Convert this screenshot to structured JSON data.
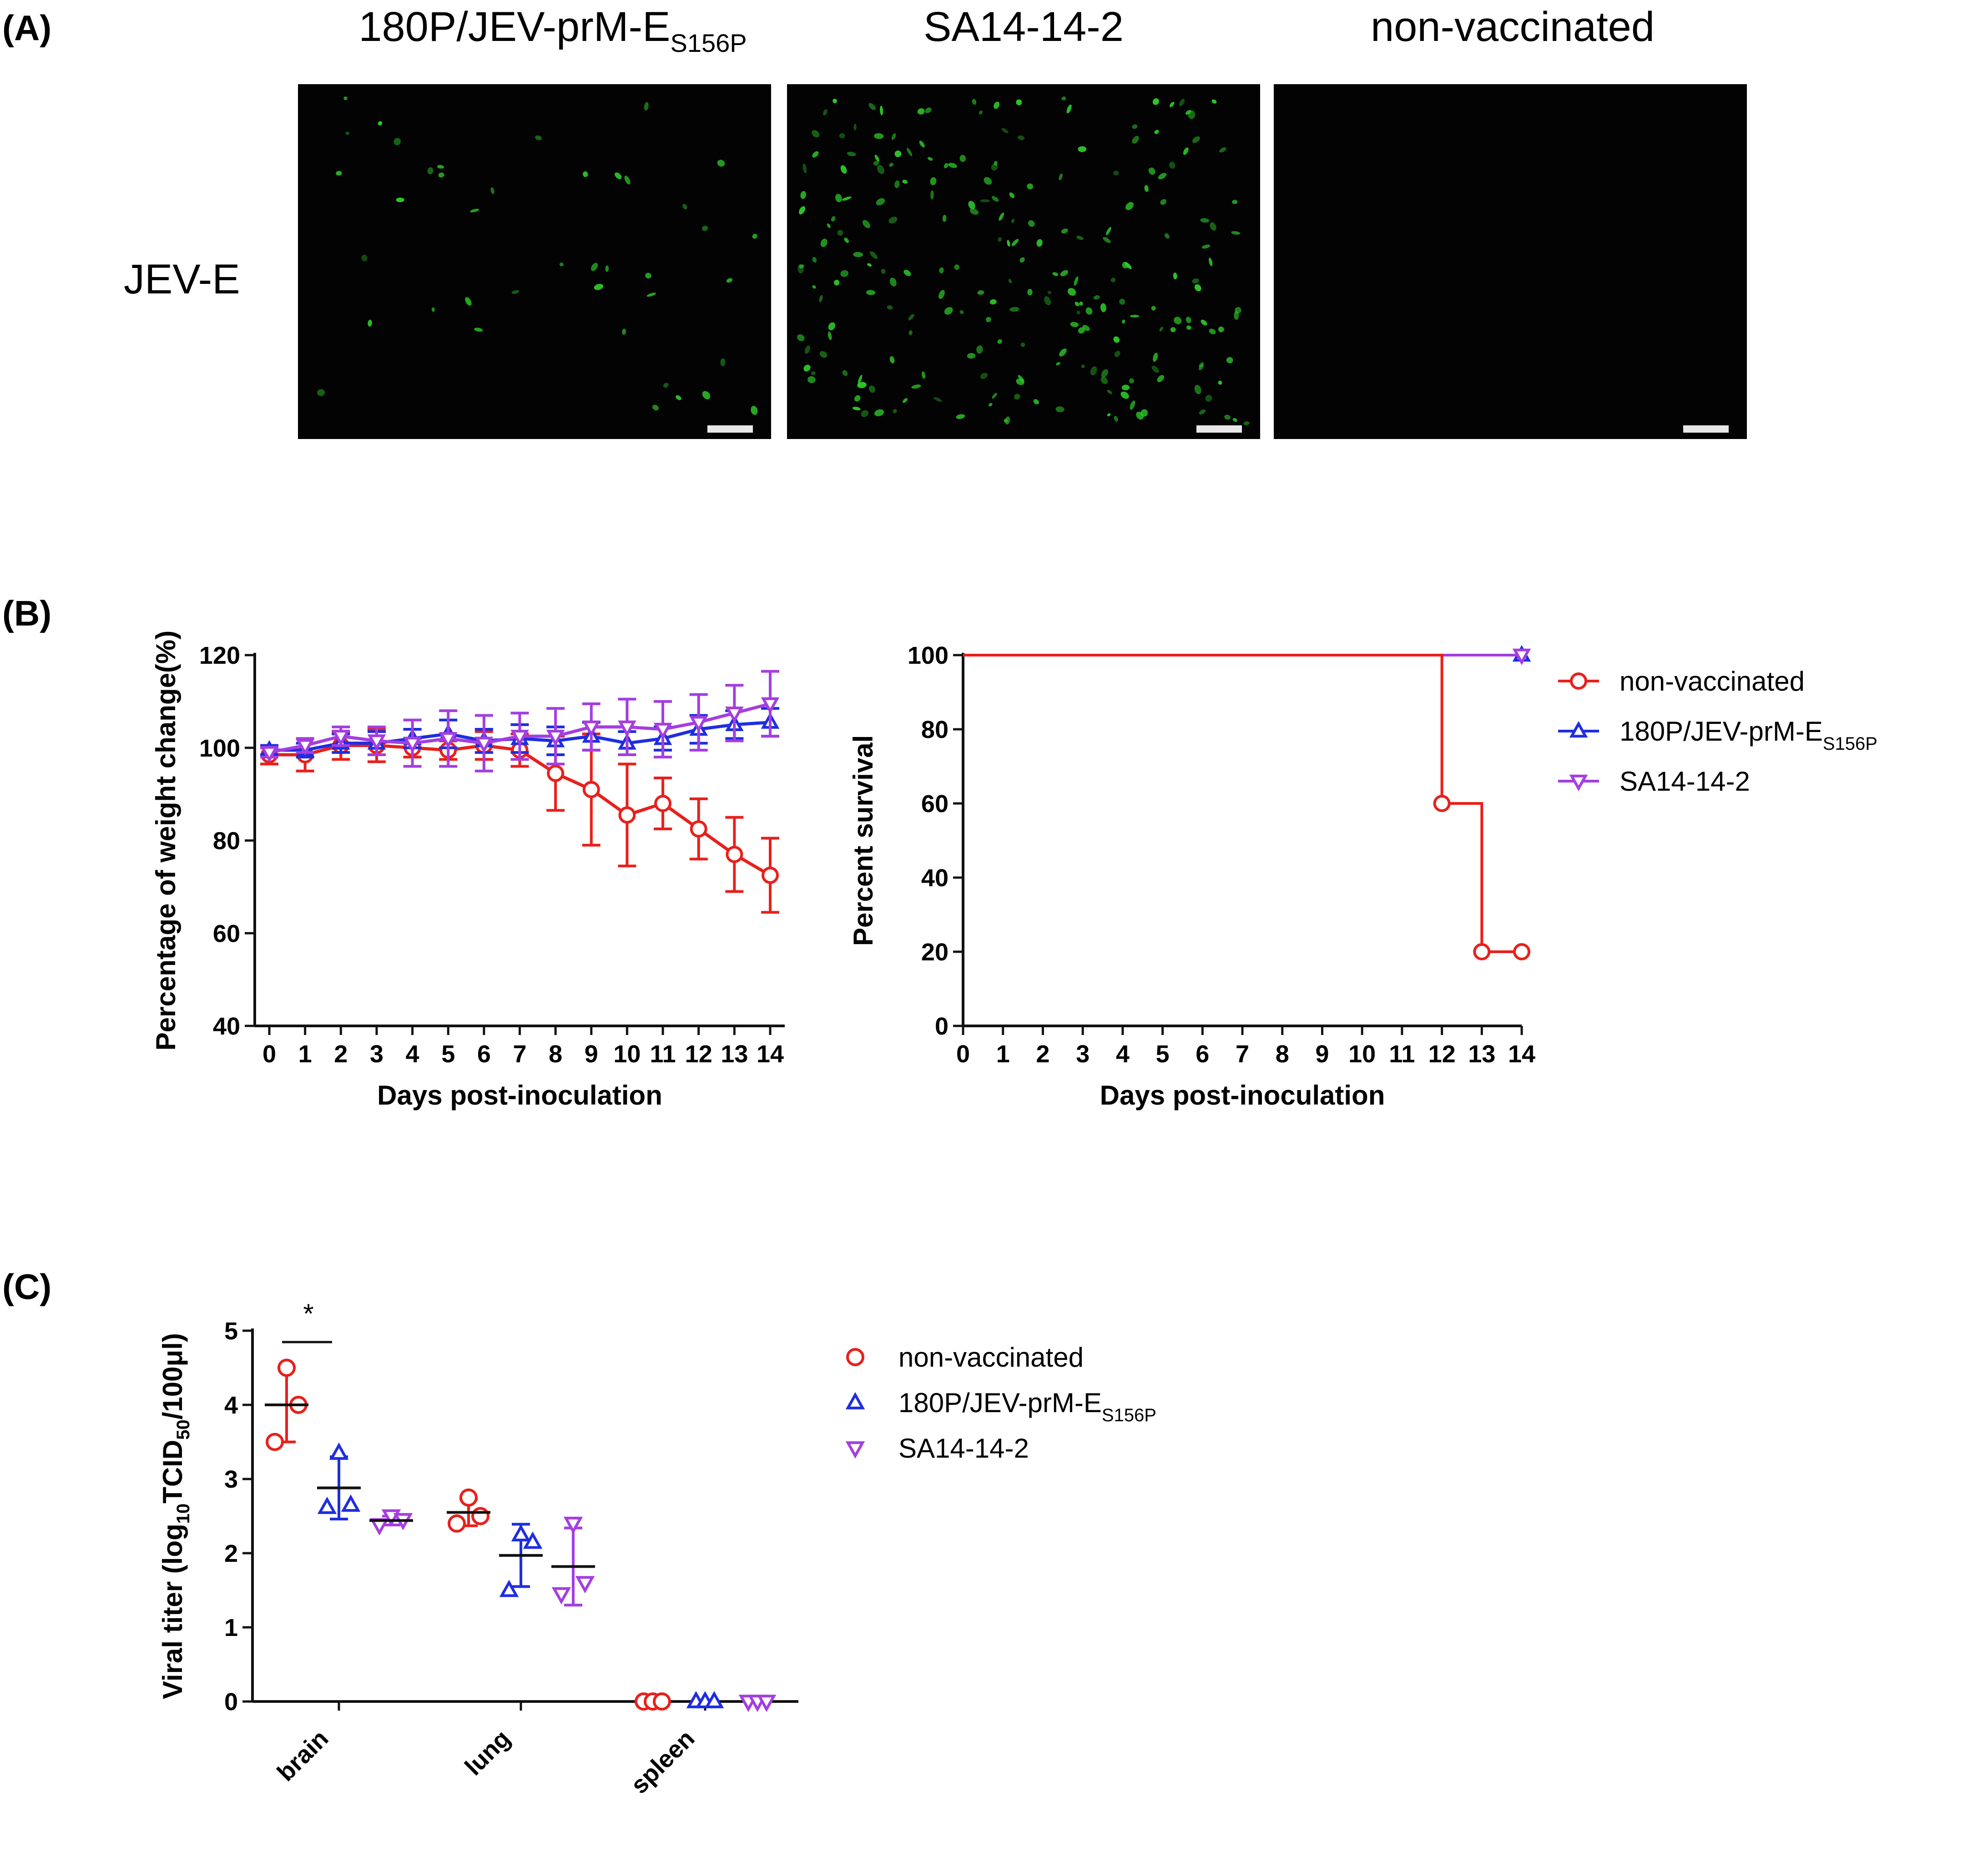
{
  "panel_a": {
    "letter": "(A)",
    "row_label": "JEV-E",
    "columns": [
      {
        "title_main": "180P/JEV-prM-E",
        "title_sub": "S156P"
      },
      {
        "title_main": "SA14-14-2",
        "title_sub": ""
      },
      {
        "title_main": "non-vaccinated",
        "title_sub": ""
      }
    ],
    "fluorescence_color": "#2fd02a",
    "cell_density": [
      0.18,
      1.0,
      0.0
    ]
  },
  "panel_b": {
    "letter": "(B)"
  },
  "panel_c": {
    "letter": "(C)"
  },
  "colors": {
    "non_vaccinated": "#e8201c",
    "vaccine_180P": "#1f2ee0",
    "sa14": "#a43ee0",
    "axis": "#111111"
  },
  "chart_data": [
    {
      "type": "line",
      "ylabel": "Percentage of weight change(%)",
      "xlabel": "Days post-inoculation",
      "ylim": [
        40,
        120
      ],
      "yticks": [
        40,
        60,
        80,
        100,
        120
      ],
      "x": [
        0,
        1,
        2,
        3,
        4,
        5,
        6,
        7,
        8,
        9,
        10,
        11,
        12,
        13,
        14
      ],
      "series": [
        {
          "name": "non-vaccinated",
          "marker": "circle",
          "values": [
            98.5,
            98.5,
            100.5,
            100.5,
            100,
            99.5,
            100.5,
            99.5,
            94.5,
            91,
            85.5,
            88,
            82.5,
            77,
            72.5
          ],
          "errors": [
            2,
            3.5,
            3,
            3.5,
            2,
            2,
            3,
            3.5,
            8,
            12,
            11,
            5.5,
            6.5,
            8,
            8
          ]
        },
        {
          "name": "180P/JEV-prM-E",
          "name_sub": "S156P",
          "marker": "triangle-up",
          "values": [
            99.5,
            99.5,
            101,
            101,
            102,
            103,
            101.5,
            102,
            101.5,
            102.5,
            101,
            102,
            104,
            105,
            105.5
          ],
          "errors": [
            1,
            1.5,
            2,
            2.5,
            2,
            3,
            2.5,
            3,
            3,
            3,
            2.5,
            2.5,
            3,
            3,
            3
          ]
        },
        {
          "name": "SA14-14-2",
          "marker": "triangle-down",
          "values": [
            99,
            100.5,
            102.5,
            101.5,
            101,
            102,
            101,
            102.5,
            102.5,
            104.5,
            104.5,
            104,
            105.5,
            107.5,
            109.5
          ],
          "errors": [
            1,
            1.5,
            2,
            3,
            5,
            6,
            6,
            5,
            6,
            5,
            6,
            6,
            6,
            6,
            7
          ]
        }
      ]
    },
    {
      "type": "line",
      "step": true,
      "ylabel": "Percent survival",
      "xlabel": "Days post-inoculation",
      "ylim": [
        0,
        100
      ],
      "yticks": [
        0,
        20,
        40,
        60,
        80,
        100
      ],
      "xticks": [
        0,
        1,
        2,
        3,
        4,
        5,
        6,
        7,
        8,
        9,
        10,
        11,
        12,
        13,
        14
      ],
      "series": [
        {
          "name": "non-vaccinated",
          "marker": "circle",
          "x": [
            0,
            12,
            13,
            14
          ],
          "values": [
            100,
            60,
            20,
            20
          ],
          "markers_at": [
            12,
            13,
            14
          ]
        },
        {
          "name": "180P/JEV-prM-E",
          "name_sub": "S156P",
          "marker": "triangle-up",
          "x": [
            0,
            14
          ],
          "values": [
            100,
            100
          ],
          "markers_at": [
            14
          ]
        },
        {
          "name": "SA14-14-2",
          "marker": "triangle-down",
          "x": [
            0,
            14
          ],
          "values": [
            100,
            100
          ],
          "markers_at": [
            14
          ]
        }
      ],
      "legend": "right"
    },
    {
      "type": "scatter",
      "ylabel": "Viral titer (log10TCID50/100μl)",
      "ylabel_parts": {
        "pre": "Viral titer (log",
        "sub1": "10",
        "mid": "TCID",
        "sub2": "50",
        "post": "/100μl)"
      },
      "ylim": [
        0,
        5
      ],
      "yticks": [
        0,
        1,
        2,
        3,
        4,
        5
      ],
      "categories": [
        "brain",
        "lung",
        "spleen"
      ],
      "series": [
        {
          "name": "non-vaccinated",
          "marker": "circle",
          "points": [
            [
              4.5,
              4.0,
              3.5
            ],
            [
              2.75,
              2.5,
              2.4
            ],
            [
              0,
              0,
              0
            ]
          ],
          "mean": [
            4.0,
            2.55,
            0
          ],
          "sd": [
            0.5,
            0.18,
            0
          ]
        },
        {
          "name": "180P/JEV-prM-E",
          "name_sub": "S156P",
          "marker": "triangle-up",
          "points": [
            [
              3.35,
              2.65,
              2.62
            ],
            [
              2.25,
              2.15,
              1.5
            ],
            [
              0,
              0,
              0
            ]
          ],
          "mean": [
            2.88,
            1.97,
            0
          ],
          "sd": [
            0.42,
            0.42,
            0
          ]
        },
        {
          "name": "SA14-14-2",
          "marker": "triangle-down",
          "points": [
            [
              2.5,
              2.45,
              2.38
            ],
            [
              2.4,
              1.6,
              1.45
            ],
            [
              0,
              0,
              0
            ]
          ],
          "mean": [
            2.44,
            1.82,
            0
          ],
          "sd": [
            0.06,
            0.52,
            0
          ]
        }
      ],
      "significance": {
        "label": "*",
        "between": [
          "non-vaccinated",
          "180P/JEV-prM-E"
        ],
        "category": "brain"
      },
      "legend": "right"
    }
  ]
}
